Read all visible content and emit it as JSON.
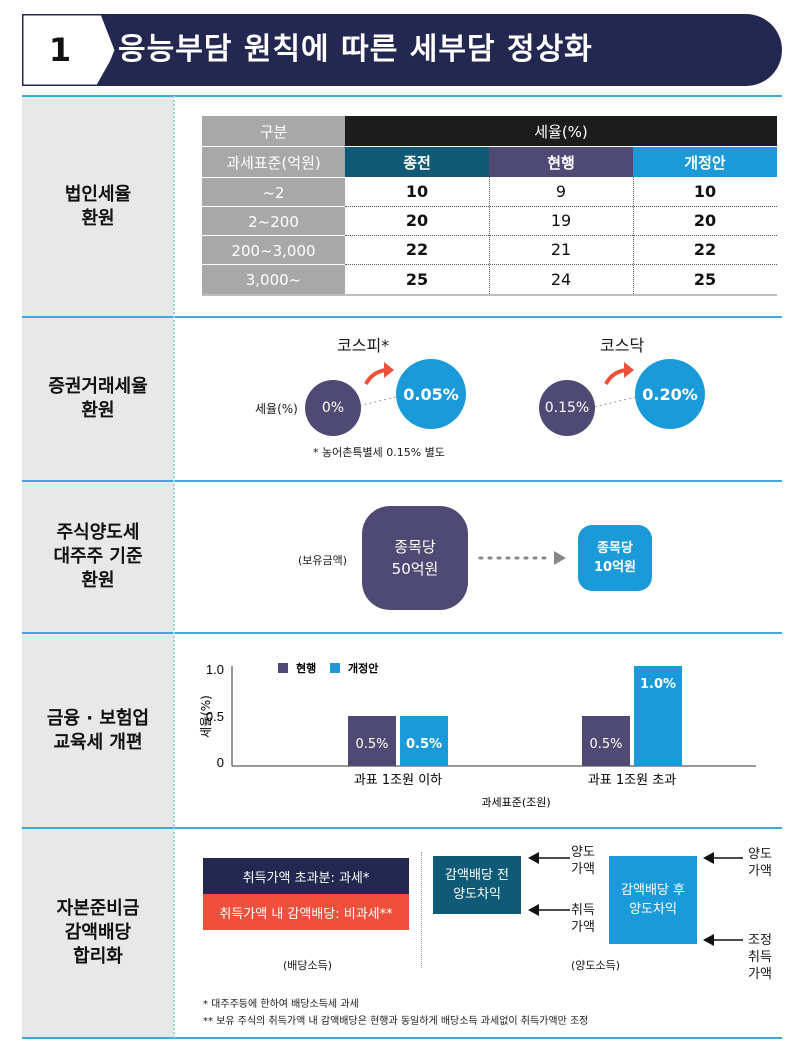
{
  "header": {
    "number": "1",
    "title": "응능부담 원칙에 따른 세부담 정상화"
  },
  "sections": {
    "corporate_tax": {
      "label": "법인세율\n환원"
    },
    "securities_tax": {
      "label": "증권거래세율\n환원"
    },
    "stock_transfer": {
      "label": "주식양도세\n대주주 기준\n환원"
    },
    "education_tax": {
      "label": "금융 · 보험업\n교육세 개편"
    },
    "capital_reserve": {
      "label": "자본준비금\n감액배당\n합리화"
    }
  },
  "tax_table": {
    "h_category": "구분",
    "h_rate": "세율(%)",
    "h_base": "과세표준(억원)",
    "h_before": "종전",
    "h_current": "현행",
    "h_revised": "개정안",
    "rows": [
      {
        "base": "~2",
        "before": "10",
        "current": "9",
        "revised": "10"
      },
      {
        "base": "2~200",
        "before": "20",
        "current": "19",
        "revised": "20"
      },
      {
        "base": "200~3,000",
        "before": "22",
        "current": "21",
        "revised": "22"
      },
      {
        "base": "3,000~",
        "before": "25",
        "current": "24",
        "revised": "25"
      }
    ]
  },
  "securities": {
    "kospi_title": "코스피*",
    "kosdaq_title": "코스닥",
    "rate_label": "세율(%)",
    "kospi_from": "0%",
    "kospi_to": "0.05%",
    "kosdaq_from": "0.15%",
    "kosdaq_to": "0.20%",
    "note": "* 농어촌특별세 0.15% 별도"
  },
  "stock": {
    "holding_label": "(보유금액)",
    "from_line1": "종목당",
    "from_line2": "50억원",
    "to_line1": "종목당",
    "to_line2": "10억원"
  },
  "chart_data": {
    "type": "bar",
    "categories": [
      "과표 1조원 이하",
      "과표 1조원 초과"
    ],
    "series": [
      {
        "name": "현행",
        "values": [
          0.5,
          0.5
        ],
        "labels": [
          "0.5%",
          "0.5%"
        ],
        "color": "#4f4a73"
      },
      {
        "name": "개정안",
        "values": [
          0.5,
          1.0
        ],
        "labels": [
          "0.5%",
          "1.0%"
        ],
        "color": "#1a9ad8"
      }
    ],
    "yticks": [
      "1.0",
      "0.5",
      "0"
    ],
    "ylim": [
      0,
      1.0
    ],
    "ylabel": "세율(%)",
    "xlabel": "과세표준(조원)",
    "legend": "top-left"
  },
  "dividend": {
    "excess_box": "취득가액 초과분: 과세*",
    "within_box": "취득가액 내 감액배당: 비과세**",
    "dividend_income": "(배당소득)",
    "before_box": "감액배당 전\n양도차익",
    "after_box": "감액배당 후\n양도차익",
    "transfer_price_1": "양도\n가액",
    "acquisition_price": "취득\n가액",
    "transfer_price_2": "양도\n가액",
    "adjusted_acquisition": "조정\n취득\n가액",
    "transfer_income": "(양도소득)",
    "note1": "* 대주주등에 한하여 배당소득세 과세",
    "note2": "** 보유 주식의 취득가액 내 감액배당은 현행과 동일하게 배당소득 과세없이 취득가액만 조정"
  },
  "colors": {
    "navy": "#242850",
    "purple": "#4f4a73",
    "blue": "#1a9ad8",
    "teal": "#0e5a77",
    "red": "#ef4f3b",
    "line": "#3fa9d8"
  }
}
